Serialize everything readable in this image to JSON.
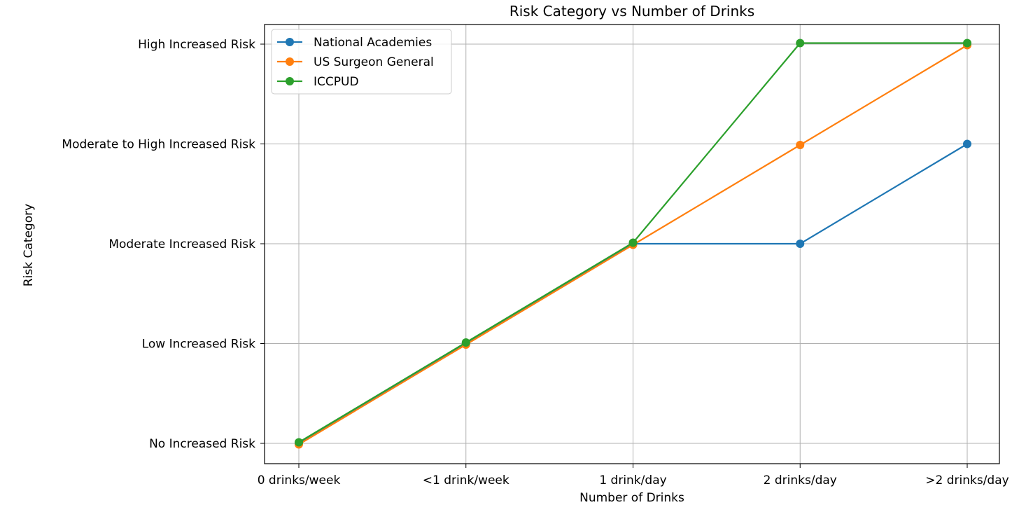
{
  "chart_data": {
    "type": "line",
    "title": "Risk Category vs Number of Drinks",
    "xlabel": "Number of Drinks",
    "ylabel": "Risk Category",
    "categories": [
      "0 drinks/week",
      "<1 drink/week",
      "1 drink/day",
      "2 drinks/day",
      ">2 drinks/day"
    ],
    "y_categories": [
      "No Increased Risk",
      "Low Increased Risk",
      "Moderate Increased Risk",
      "Moderate to High Increased Risk",
      "High Increased Risk"
    ],
    "series": [
      {
        "name": "National Academies",
        "color": "#1f77b4",
        "values": [
          0,
          1,
          2,
          2,
          3
        ]
      },
      {
        "name": "US Surgeon General",
        "color": "#ff7f0e",
        "values": [
          0,
          1,
          2,
          3,
          4
        ]
      },
      {
        "name": "ICCPUD",
        "color": "#2ca02c",
        "values": [
          0,
          1,
          2,
          4,
          4
        ]
      }
    ],
    "grid": true,
    "legend": "top-left"
  }
}
